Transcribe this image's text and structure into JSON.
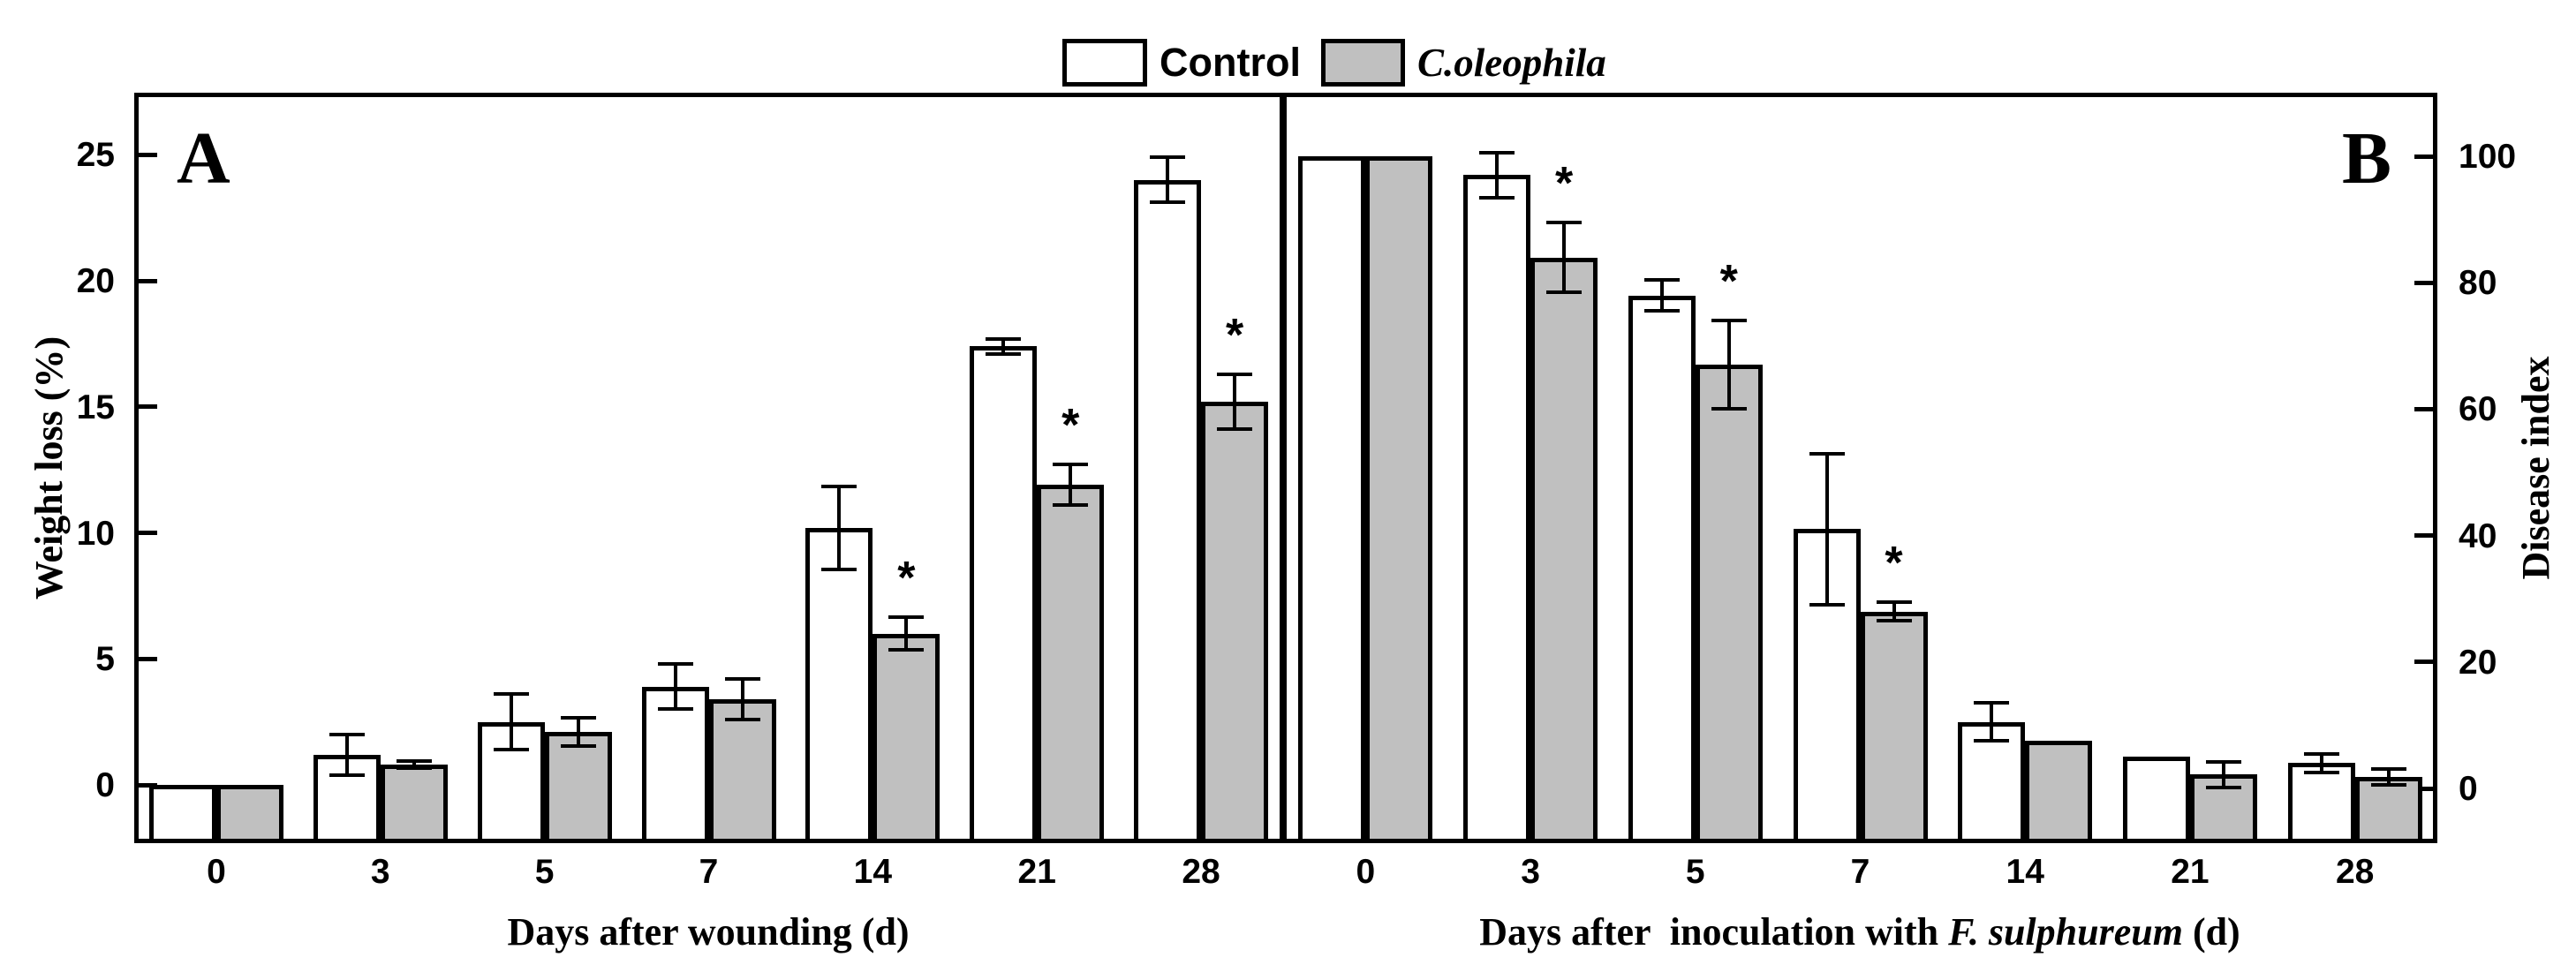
{
  "figure": {
    "sig_marker": "*",
    "background": "#ffffff",
    "line_color": "#000000",
    "legend": [
      {
        "label": "Control",
        "swatch": "#ffffff"
      },
      {
        "label": "C.oleophila",
        "swatch": "#c0c0c0",
        "italic": true
      }
    ]
  },
  "chart_data": [
    {
      "type": "bar",
      "panel_label": "A",
      "xlabel": "Days after wounding (d)",
      "ylabel": "Weight loss (%)",
      "yaxis_side": "left",
      "yticks": [
        0,
        5,
        10,
        15,
        20,
        25
      ],
      "ylim": [
        -2.3,
        27.5
      ],
      "grid": false,
      "bars_baseline": "frame_bottom",
      "categories": [
        "0",
        "3",
        "5",
        "7",
        "14",
        "21",
        "28"
      ],
      "series": [
        {
          "name": "Control",
          "fill": "#ffffff",
          "values": [
            0,
            1.2,
            2.5,
            3.9,
            10.2,
            17.4,
            24.0
          ],
          "errors": [
            0,
            0.8,
            1.1,
            0.9,
            1.65,
            0.3,
            0.9
          ],
          "significant": [
            false,
            false,
            false,
            false,
            false,
            false,
            false
          ]
        },
        {
          "name": "C.oleophila",
          "fill": "#c0c0c0",
          "values": [
            0,
            0.8,
            2.1,
            3.4,
            6.0,
            11.9,
            15.2
          ],
          "errors": [
            0,
            0.15,
            0.55,
            0.8,
            0.65,
            0.8,
            1.1
          ],
          "significant": [
            false,
            false,
            false,
            false,
            true,
            true,
            true
          ]
        }
      ]
    },
    {
      "type": "bar",
      "panel_label": "B",
      "xlabel_parts": [
        {
          "text": "Days after  inoculation with ",
          "italic": false
        },
        {
          "text": "F. sulphureum",
          "italic": true
        },
        {
          "text": " (d)",
          "italic": false
        }
      ],
      "ylabel": "Disease index",
      "yaxis_side": "right",
      "yticks": [
        0,
        20,
        40,
        60,
        80,
        100
      ],
      "ylim": [
        -8.7,
        110
      ],
      "grid": false,
      "bars_baseline": "frame_bottom",
      "categories": [
        "0",
        "3",
        "5",
        "7",
        "14",
        "21",
        "28"
      ],
      "series": [
        {
          "name": "Control",
          "fill": "#ffffff",
          "values": [
            100,
            97,
            78,
            41,
            10.5,
            5,
            4
          ],
          "errors": [
            0,
            3.5,
            2.5,
            12,
            3,
            0,
            1.5
          ],
          "significant": [
            false,
            false,
            false,
            false,
            false,
            false,
            false
          ]
        },
        {
          "name": "C.oleophila",
          "fill": "#c0c0c0",
          "values": [
            100,
            84,
            67,
            28,
            7.5,
            2.2,
            1.8
          ],
          "errors": [
            0,
            5.5,
            7,
            1.5,
            0,
            2,
            1.3
          ],
          "significant": [
            false,
            true,
            true,
            true,
            false,
            false,
            false
          ]
        }
      ]
    }
  ]
}
